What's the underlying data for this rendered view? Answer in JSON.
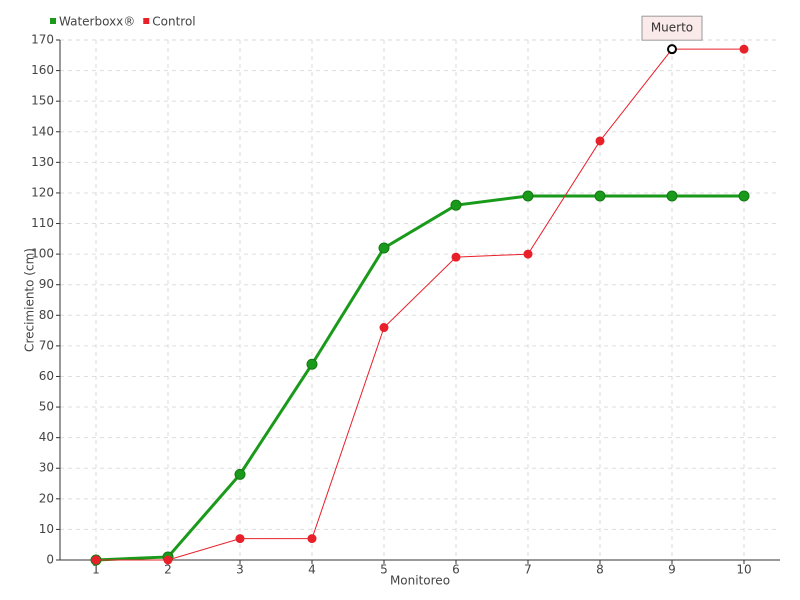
{
  "chart_data": {
    "type": "line",
    "x_label": "Monitoreo",
    "y_label": "Crecimiento (cm)",
    "categories": [
      "1",
      "2",
      "3",
      "4",
      "5",
      "6",
      "7",
      "8",
      "9",
      "10"
    ],
    "series": [
      {
        "name": "Waterboxx®",
        "color": "#1a9a1a",
        "values": [
          0,
          1,
          28,
          64,
          102,
          116,
          119,
          119,
          119,
          119
        ]
      },
      {
        "name": "Control",
        "color": "#e8202a",
        "values": [
          0,
          0,
          7,
          7,
          76,
          99,
          100,
          137,
          167,
          167
        ]
      }
    ],
    "ylim": [
      0,
      170
    ],
    "yticks": [
      0,
      10,
      20,
      30,
      40,
      50,
      60,
      70,
      80,
      90,
      100,
      110,
      120,
      130,
      140,
      150,
      160,
      170
    ],
    "grid": true,
    "legend": "top-left",
    "annotations": [
      {
        "text": "Muerto",
        "series": "Control",
        "category": "9"
      }
    ]
  }
}
